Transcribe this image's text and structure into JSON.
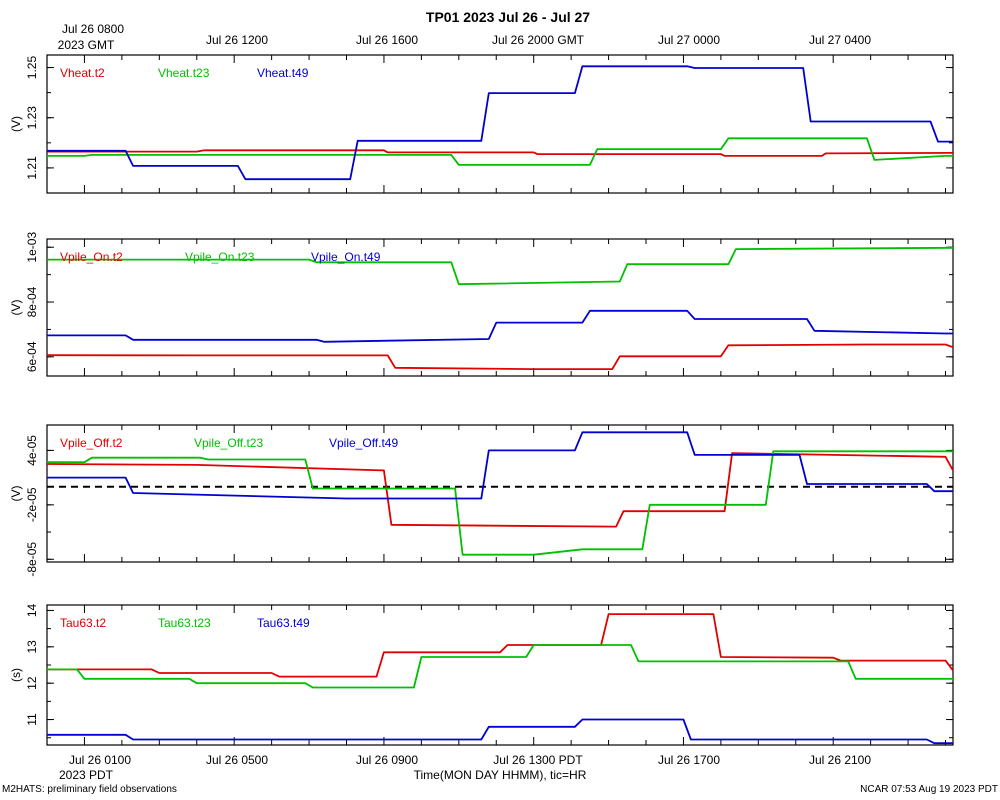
{
  "title": "TP01 2023 Jul 26 - Jul 27",
  "top_axis": {
    "first_label": [
      "Jul 26 0800",
      "2023 GMT"
    ],
    "labels": [
      "Jul 26 1200",
      "Jul 26 1600",
      "Jul 26 2000 GMT",
      "Jul 27 0000",
      "Jul 27 0400"
    ]
  },
  "bottom_axis": {
    "labels": [
      "Jul 26 0100",
      "Jul 26 0500",
      "Jul 26 0900",
      "Jul 26 1300 PDT",
      "Jul 26 1700",
      "Jul 26 2100"
    ],
    "year_label": "2023 PDT",
    "xlabel": "Time(MON DAY HHMM), tic=HR",
    "x_range_hours": [
      0,
      24.2
    ],
    "label_hours": [
      1,
      5,
      9,
      13,
      17,
      21
    ]
  },
  "footer": {
    "left": "M2HATS: preliminary field observations",
    "right": "NCAR 07:53 Aug 19 2023 PDT"
  },
  "colors": {
    "t2": "#e00000",
    "t23": "#00c000",
    "t49": "#0000d0",
    "zero_line": "#000000"
  },
  "chart_data": [
    {
      "type": "line",
      "ylabel": "(V)",
      "ylim": [
        1.2,
        1.255
      ],
      "yticks": [
        1.21,
        1.23,
        1.25
      ],
      "ytick_labels": [
        "1.21",
        "1.23",
        "1.25"
      ],
      "series": [
        {
          "name": "Vheat.t2",
          "color_key": "t2",
          "points": [
            [
              0,
              1.2165
            ],
            [
              4,
              1.2165
            ],
            [
              4.2,
              1.217
            ],
            [
              9,
              1.217
            ],
            [
              9.1,
              1.2162
            ],
            [
              13,
              1.2162
            ],
            [
              13.1,
              1.2155
            ],
            [
              18,
              1.2155
            ],
            [
              18.1,
              1.2148
            ],
            [
              20.7,
              1.2148
            ],
            [
              20.8,
              1.2158
            ],
            [
              24.2,
              1.216
            ]
          ]
        },
        {
          "name": "Vheat.t23",
          "color_key": "t23",
          "points": [
            [
              0,
              1.2148
            ],
            [
              1,
              1.2148
            ],
            [
              1.2,
              1.2152
            ],
            [
              10.8,
              1.2152
            ],
            [
              11,
              1.2112
            ],
            [
              14.5,
              1.2112
            ],
            [
              14.7,
              1.2175
            ],
            [
              18,
              1.2175
            ],
            [
              18.2,
              1.2218
            ],
            [
              21.9,
              1.2218
            ],
            [
              22.1,
              1.2132
            ],
            [
              24,
              1.2148
            ],
            [
              24.2,
              1.2148
            ]
          ]
        },
        {
          "name": "Vheat.t49",
          "color_key": "t49",
          "points": [
            [
              0,
              1.2168
            ],
            [
              2.1,
              1.2168
            ],
            [
              2.3,
              1.2108
            ],
            [
              5.1,
              1.2108
            ],
            [
              5.3,
              1.2055
            ],
            [
              8.1,
              1.2055
            ],
            [
              8.3,
              1.2208
            ],
            [
              11.6,
              1.2208
            ],
            [
              11.8,
              1.2398
            ],
            [
              14.1,
              1.2398
            ],
            [
              14.3,
              1.2505
            ],
            [
              17.1,
              1.2505
            ],
            [
              17.3,
              1.2498
            ],
            [
              20.2,
              1.2498
            ],
            [
              20.4,
              1.2285
            ],
            [
              23.6,
              1.2285
            ],
            [
              23.8,
              1.2205
            ],
            [
              24.2,
              1.2205
            ]
          ]
        }
      ]
    },
    {
      "type": "line",
      "ylabel": "(V)",
      "ylim": [
        0.00053,
        0.00103
      ],
      "yticks": [
        0.0006,
        0.0008,
        0.001
      ],
      "ytick_labels": [
        "6e-04",
        "8e-04",
        "1e-03"
      ],
      "series": [
        {
          "name": "Vpile_On.t2",
          "color_key": "t2",
          "points": [
            [
              0,
              0.000606
            ],
            [
              4,
              0.000605
            ],
            [
              9.1,
              0.000605
            ],
            [
              9.3,
              0.00056
            ],
            [
              13,
              0.000555
            ],
            [
              15.1,
              0.000555
            ],
            [
              15.3,
              0.000602
            ],
            [
              18,
              0.000602
            ],
            [
              18.2,
              0.000642
            ],
            [
              21.9,
              0.000645
            ],
            [
              24,
              0.000645
            ],
            [
              24.2,
              0.000635
            ]
          ]
        },
        {
          "name": "Vpile_On.t23",
          "color_key": "t23",
          "points": [
            [
              0,
              0.000955
            ],
            [
              7,
              0.000955
            ],
            [
              7.2,
              0.000945
            ],
            [
              10.8,
              0.000945
            ],
            [
              11,
              0.000865
            ],
            [
              15.3,
              0.000875
            ],
            [
              15.5,
              0.000938
            ],
            [
              18.2,
              0.000938
            ],
            [
              18.4,
              0.000993
            ],
            [
              24.2,
              0.000998
            ]
          ]
        },
        {
          "name": "Vpile_On.t49",
          "color_key": "t49",
          "points": [
            [
              0,
              0.000678
            ],
            [
              2.1,
              0.000678
            ],
            [
              2.3,
              0.000662
            ],
            [
              7.2,
              0.000662
            ],
            [
              7.4,
              0.000655
            ],
            [
              11.8,
              0.000665
            ],
            [
              12,
              0.000725
            ],
            [
              14.3,
              0.000725
            ],
            [
              14.5,
              0.000768
            ],
            [
              17.1,
              0.000768
            ],
            [
              17.3,
              0.000738
            ],
            [
              20.3,
              0.000738
            ],
            [
              20.5,
              0.000695
            ],
            [
              24,
              0.000685
            ],
            [
              24.2,
              0.000685
            ]
          ]
        }
      ]
    },
    {
      "type": "line",
      "ylabel": "(V)",
      "ylim": [
        -8.3e-05,
        6.8e-05
      ],
      "yticks": [
        -8e-05,
        -2e-05,
        4e-05
      ],
      "ytick_labels": [
        "-8e-05",
        "-2e-05",
        "4e-05"
      ],
      "zero_line": true,
      "series": [
        {
          "name": "Vpile_Off.t2",
          "color_key": "t2",
          "points": [
            [
              0,
              2.5e-05
            ],
            [
              4,
              2.4e-05
            ],
            [
              9,
              1.8e-05
            ],
            [
              9.2,
              -4.2e-05
            ],
            [
              12,
              -4.3e-05
            ],
            [
              15.2,
              -4.4e-05
            ],
            [
              15.4,
              -2.7e-05
            ],
            [
              18.1,
              -2.7e-05
            ],
            [
              18.3,
              3.7e-05
            ],
            [
              24,
              3.3e-05
            ],
            [
              24.2,
              1.8e-05
            ]
          ]
        },
        {
          "name": "Vpile_Off.t23",
          "color_key": "t23",
          "points": [
            [
              0,
              2.7e-05
            ],
            [
              1,
              2.7e-05
            ],
            [
              1.2,
              3.2e-05
            ],
            [
              4.1,
              3.2e-05
            ],
            [
              4.3,
              3e-05
            ],
            [
              6.9,
              3e-05
            ],
            [
              7.1,
              -2e-06
            ],
            [
              10.9,
              -2e-06
            ],
            [
              11.1,
              -7.5e-05
            ],
            [
              13,
              -7.5e-05
            ],
            [
              14.3,
              -6.9e-05
            ],
            [
              15.9,
              -6.9e-05
            ],
            [
              16.1,
              -2e-05
            ],
            [
              19.2,
              -2e-05
            ],
            [
              19.4,
              3.9e-05
            ],
            [
              24.2,
              3.9e-05
            ]
          ]
        },
        {
          "name": "Vpile_Off.t49",
          "color_key": "t49",
          "points": [
            [
              0,
              1e-05
            ],
            [
              2.1,
              1e-05
            ],
            [
              2.3,
              -7e-06
            ],
            [
              8,
              -1.3e-05
            ],
            [
              11.6,
              -1.3e-05
            ],
            [
              11.8,
              4e-05
            ],
            [
              14.1,
              4e-05
            ],
            [
              14.3,
              6e-05
            ],
            [
              17.1,
              6e-05
            ],
            [
              17.3,
              3.5e-05
            ],
            [
              20.1,
              3.5e-05
            ],
            [
              20.3,
              3e-06
            ],
            [
              23.5,
              3e-06
            ],
            [
              23.7,
              -5e-06
            ],
            [
              24.2,
              -5e-06
            ]
          ]
        }
      ]
    },
    {
      "type": "line",
      "ylabel": "(s)",
      "ylim": [
        10.3,
        14.15
      ],
      "yticks": [
        11,
        12,
        13,
        14
      ],
      "ytick_labels": [
        "11",
        "12",
        "13",
        "14"
      ],
      "series": [
        {
          "name": "Tau63.t2",
          "color_key": "t2",
          "points": [
            [
              0,
              12.38
            ],
            [
              2.8,
              12.38
            ],
            [
              3,
              12.28
            ],
            [
              6,
              12.28
            ],
            [
              6.2,
              12.18
            ],
            [
              8.8,
              12.18
            ],
            [
              9,
              12.85
            ],
            [
              12.1,
              12.85
            ],
            [
              12.3,
              13.05
            ],
            [
              14.8,
              13.05
            ],
            [
              15,
              13.9
            ],
            [
              17.8,
              13.9
            ],
            [
              18,
              12.72
            ],
            [
              21,
              12.7
            ],
            [
              21.2,
              12.62
            ],
            [
              24,
              12.62
            ],
            [
              24.2,
              12.35
            ]
          ]
        },
        {
          "name": "Tau63.t23",
          "color_key": "t23",
          "points": [
            [
              0,
              12.38
            ],
            [
              0.8,
              12.38
            ],
            [
              1,
              12.12
            ],
            [
              3.8,
              12.12
            ],
            [
              4,
              12.0
            ],
            [
              6.9,
              12.0
            ],
            [
              7.1,
              11.88
            ],
            [
              9.8,
              11.88
            ],
            [
              10,
              12.72
            ],
            [
              12.8,
              12.72
            ],
            [
              13,
              13.05
            ],
            [
              15.6,
              13.05
            ],
            [
              15.8,
              12.6
            ],
            [
              21.4,
              12.6
            ],
            [
              21.6,
              12.12
            ],
            [
              24.2,
              12.12
            ]
          ]
        },
        {
          "name": "Tau63.t49",
          "color_key": "t49",
          "points": [
            [
              0,
              10.58
            ],
            [
              2.1,
              10.58
            ],
            [
              2.3,
              10.45
            ],
            [
              11.6,
              10.45
            ],
            [
              11.8,
              10.8
            ],
            [
              14.1,
              10.8
            ],
            [
              14.3,
              11.0
            ],
            [
              17,
              11.0
            ],
            [
              17.2,
              10.45
            ],
            [
              23.5,
              10.45
            ],
            [
              23.7,
              10.35
            ],
            [
              24.2,
              10.35
            ]
          ]
        }
      ]
    }
  ]
}
